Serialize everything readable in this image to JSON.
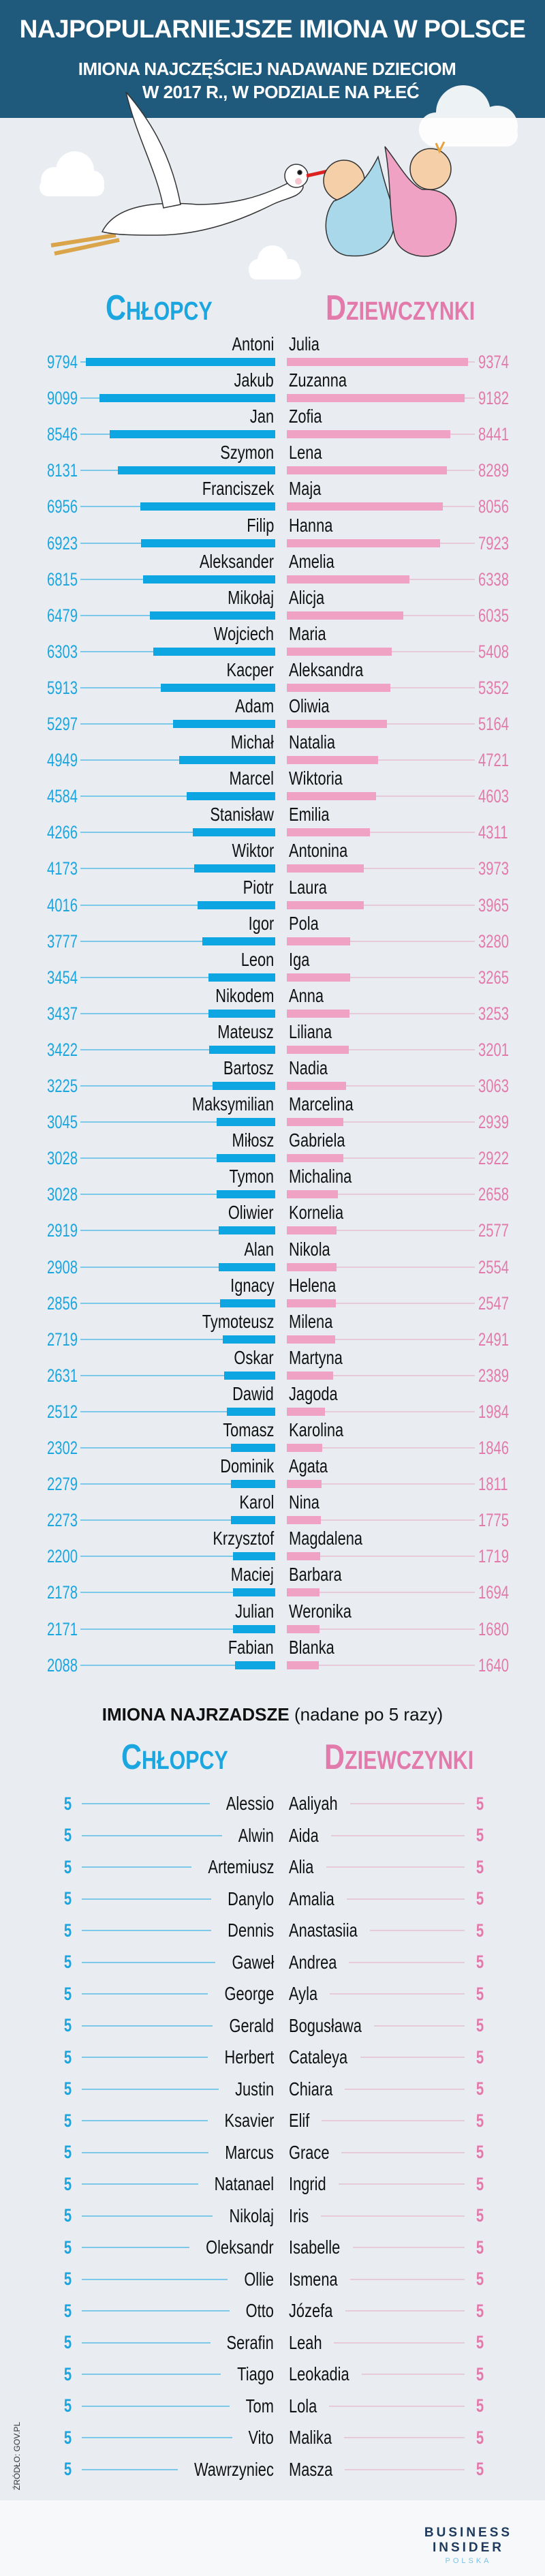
{
  "header": {
    "title": "NAJPOPULARNIEJSZE IMIONA W POLSCE",
    "subtitle_line1": "IMIONA NAJCZĘŚCIEJ NADAWANE DZIECIOM",
    "subtitle_line2": "W 2017 R., W PODZIALE NA PŁEĆ"
  },
  "columns": {
    "boys_initial": "C",
    "boys_rest": "HŁOPCY",
    "girls_initial": "D",
    "girls_rest": "ZIEWCZYNKI"
  },
  "colors": {
    "header_bg": "#1f5a7c",
    "boys": "#0ea5e3",
    "girls": "#f0a2c5",
    "boys_text": "#1ba6df",
    "girls_text": "#e27bab"
  },
  "chart_data": {
    "type": "bar",
    "orientation": "horizontal-butterfly",
    "series": [
      {
        "name": "Chłopcy",
        "categories": [
          "Antoni",
          "Jakub",
          "Jan",
          "Szymon",
          "Franciszek",
          "Filip",
          "Aleksander",
          "Mikołaj",
          "Wojciech",
          "Kacper",
          "Adam",
          "Michał",
          "Marcel",
          "Stanisław",
          "Wiktor",
          "Piotr",
          "Igor",
          "Leon",
          "Nikodem",
          "Mateusz",
          "Bartosz",
          "Maksymilian",
          "Miłosz",
          "Tymon",
          "Oliwier",
          "Alan",
          "Ignacy",
          "Tymoteusz",
          "Oskar",
          "Dawid",
          "Tomasz",
          "Dominik",
          "Karol",
          "Krzysztof",
          "Maciej",
          "Julian",
          "Fabian"
        ],
        "values": [
          9794,
          9099,
          8546,
          8131,
          6956,
          6923,
          6815,
          6479,
          6303,
          5913,
          5297,
          4949,
          4584,
          4266,
          4173,
          4016,
          3777,
          3454,
          3437,
          3422,
          3225,
          3045,
          3028,
          3028,
          2919,
          2908,
          2856,
          2719,
          2631,
          2512,
          2302,
          2279,
          2273,
          2200,
          2178,
          2171,
          2088
        ]
      },
      {
        "name": "Dziewczynki",
        "categories": [
          "Julia",
          "Zuzanna",
          "Zofia",
          "Lena",
          "Maja",
          "Hanna",
          "Amelia",
          "Alicja",
          "Maria",
          "Aleksandra",
          "Oliwia",
          "Natalia",
          "Wiktoria",
          "Emilia",
          "Antonina",
          "Laura",
          "Pola",
          "Iga",
          "Anna",
          "Liliana",
          "Nadia",
          "Marcelina",
          "Gabriela",
          "Michalina",
          "Kornelia",
          "Nikola",
          "Helena",
          "Milena",
          "Martyna",
          "Jagoda",
          "Karolina",
          "Agata",
          "Nina",
          "Magdalena",
          "Barbara",
          "Weronika",
          "Blanka"
        ],
        "values": [
          9374,
          9182,
          8441,
          8289,
          8056,
          7923,
          6338,
          6035,
          5408,
          5352,
          5164,
          4721,
          4603,
          4311,
          3973,
          3965,
          3280,
          3265,
          3253,
          3201,
          3063,
          2939,
          2922,
          2658,
          2577,
          2554,
          2547,
          2491,
          2389,
          1984,
          1846,
          1811,
          1775,
          1719,
          1694,
          1680,
          1640
        ]
      }
    ]
  },
  "rare": {
    "title_bold": "IMIONA NAJRZADSZE",
    "title_note": "(nadane po 5 razy)",
    "boys": [
      "Alessio",
      "Alwin",
      "Artemiusz",
      "Danylo",
      "Dennis",
      "Gaweł",
      "George",
      "Gerald",
      "Herbert",
      "Justin",
      "Ksavier",
      "Marcus",
      "Natanael",
      "Nikolaj",
      "Oleksandr",
      "Ollie",
      "Otto",
      "Serafin",
      "Tiago",
      "Tom",
      "Vito",
      "Wawrzyniec"
    ],
    "girls": [
      "Aaliyah",
      "Aida",
      "Alia",
      "Amalia",
      "Anastasiia",
      "Andrea",
      "Ayla",
      "Bogusława",
      "Cataleya",
      "Chiara",
      "Elif",
      "Grace",
      "Ingrid",
      "Iris",
      "Isabelle",
      "Ismena",
      "Józefa",
      "Leah",
      "Leokadia",
      "Lola",
      "Malika",
      "Masza"
    ],
    "count": "5"
  },
  "footer": {
    "source": "ŹRÓDŁO: GOV.PL",
    "logo_line1": "BUSINESS",
    "logo_line2": "INSIDER",
    "logo_line3": "POLSKA"
  }
}
